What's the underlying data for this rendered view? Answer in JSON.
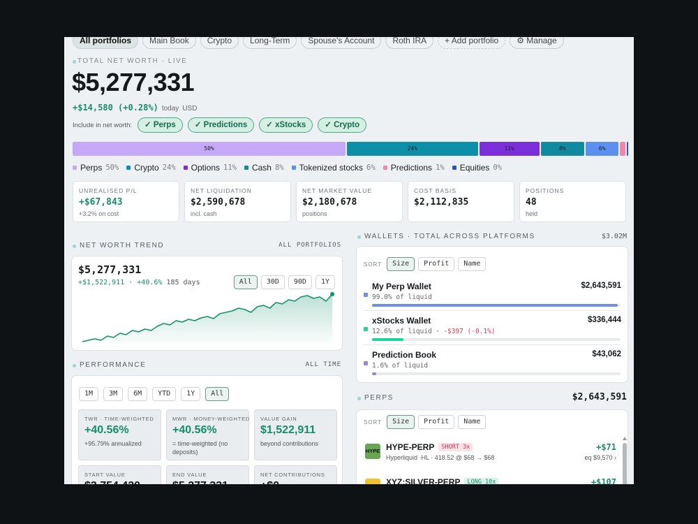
{
  "tabs": [
    "All portfolios",
    "Main Book",
    "Crypto",
    "Long-Term",
    "Spouse's Account",
    "Roth IRA",
    "+ Add portfolio",
    "⚙ Manage"
  ],
  "header": {
    "label": "TOTAL NET WORTH · LIVE",
    "value": "$5,277,331",
    "change": "+$14,580 (+0.28%)",
    "period": "today",
    "currency": "USD"
  },
  "include": {
    "label": "Include in net worth:",
    "toggles": [
      "✓ Perps",
      "✓ Predictions",
      "✓ xStocks",
      "✓ Crypto"
    ]
  },
  "allocation": {
    "categories": [
      "Perps",
      "Crypto",
      "Options",
      "Cash",
      "Tokenized stocks",
      "Predictions",
      "Equities"
    ],
    "values": [
      50,
      24,
      11,
      8,
      6,
      1,
      0
    ],
    "value_labels": [
      "50%",
      "24%",
      "11%",
      "8%",
      "6%",
      "1%",
      "0%"
    ],
    "colors": [
      "#c5a9f6",
      "#0e8fa8",
      "#7b2fd8",
      "#0f8a9e",
      "#5b8ff0",
      "#f087a8",
      "#2b55c4"
    ]
  },
  "stats": [
    {
      "label": "UNREALISED P/L",
      "value": "+$67,843",
      "note": "+3.2% on cost"
    },
    {
      "label": "NET LIQUIDATION",
      "value": "$2,590,678",
      "note": "incl. cash"
    },
    {
      "label": "NET MARKET VALUE",
      "value": "$2,180,678",
      "note": "positions"
    },
    {
      "label": "COST BASIS",
      "value": "$2,112,835"
    },
    {
      "label": "POSITIONS",
      "value": "48",
      "note": "held"
    }
  ],
  "trend": {
    "title": "NET WORTH TREND",
    "scope": "ALL PORTFOLIOS",
    "value": "$5,277,331",
    "change": "+$1,522,911 · +40.6%",
    "period": "185 days",
    "ranges": [
      "All",
      "30D",
      "90D",
      "1Y"
    ]
  },
  "chart_data": {
    "type": "line",
    "color": "#13906a",
    "values": [
      3754420,
      3799000,
      3844000,
      3799000,
      3934000,
      3889000,
      4023000,
      3978000,
      4113000,
      4068000,
      4158000,
      4113000,
      4247000,
      4337000,
      4292000,
      4426000,
      4381000,
      4471000,
      4426000,
      4516000,
      4561000,
      4494000,
      4650000,
      4695000,
      4740000,
      4830000,
      4785000,
      4695000,
      4874000,
      4919000,
      4830000,
      5009000,
      4964000,
      5098000,
      5054000,
      5188000,
      5233000,
      5143000,
      5188000,
      5054000,
      5277331
    ]
  },
  "performance": {
    "title": "PERFORMANCE",
    "scope": "ALL TIME",
    "ranges": [
      "1M",
      "3M",
      "6M",
      "YTD",
      "1Y",
      "All"
    ],
    "metrics": [
      {
        "label": "TWR · TIME-WEIGHTED",
        "value": "+40.56%",
        "note": "+95.79% annualized"
      },
      {
        "label": "MWR · MONEY-WEIGHTED",
        "value": "+40.56%",
        "note": "= time-weighted (no deposits)"
      },
      {
        "label": "VALUE GAIN",
        "value": "$1,522,911",
        "note": "beyond contributions"
      },
      {
        "label": "START VALUE",
        "value": "$3,754,420"
      },
      {
        "label": "END VALUE",
        "value": "$5,277,331"
      },
      {
        "label": "NET CONTRIBUTIONS",
        "value": "+$0"
      }
    ]
  },
  "wallets": {
    "title": "WALLETS · TOTAL ACROSS PLATFORMS",
    "total": "$3.02M",
    "sort_label": "SORT",
    "sorts": [
      "Size",
      "Profit",
      "Name"
    ],
    "items": [
      {
        "name": "My Perp Wallet",
        "value": "$2,643,591",
        "note": "99.0% of liquid",
        "share": 99.0,
        "color": "#6f8ee8"
      },
      {
        "name": "xStocks Wallet",
        "value": "$336,444",
        "note": "12.6% of liquid ·",
        "pnl": "-$397 (-0.1%)",
        "share": 12.6,
        "color": "#1fd69a"
      },
      {
        "name": "Prediction Book",
        "value": "$43,062",
        "note": "1.6% of liquid",
        "share": 1.6,
        "color": "#9a86d8"
      }
    ]
  },
  "perps": {
    "title": "PERPS",
    "total": "$2,643,591",
    "sort_label": "SORT",
    "sorts": [
      "Size",
      "Profit",
      "Name"
    ],
    "positions": [
      {
        "badge": "HYPE",
        "name": "HYPE-PERP",
        "side": "SHORT 3x",
        "detail": "Hyperliquid ·HL · 418.52 @ $68 → $68",
        "pnl": "+$71",
        "equity": "eq $9,570 ›"
      },
      {
        "badge": "XYZ:",
        "name": "XYZ:SILVER-PERP",
        "side": "LONG 10x",
        "pnl": "+$107"
      }
    ]
  }
}
